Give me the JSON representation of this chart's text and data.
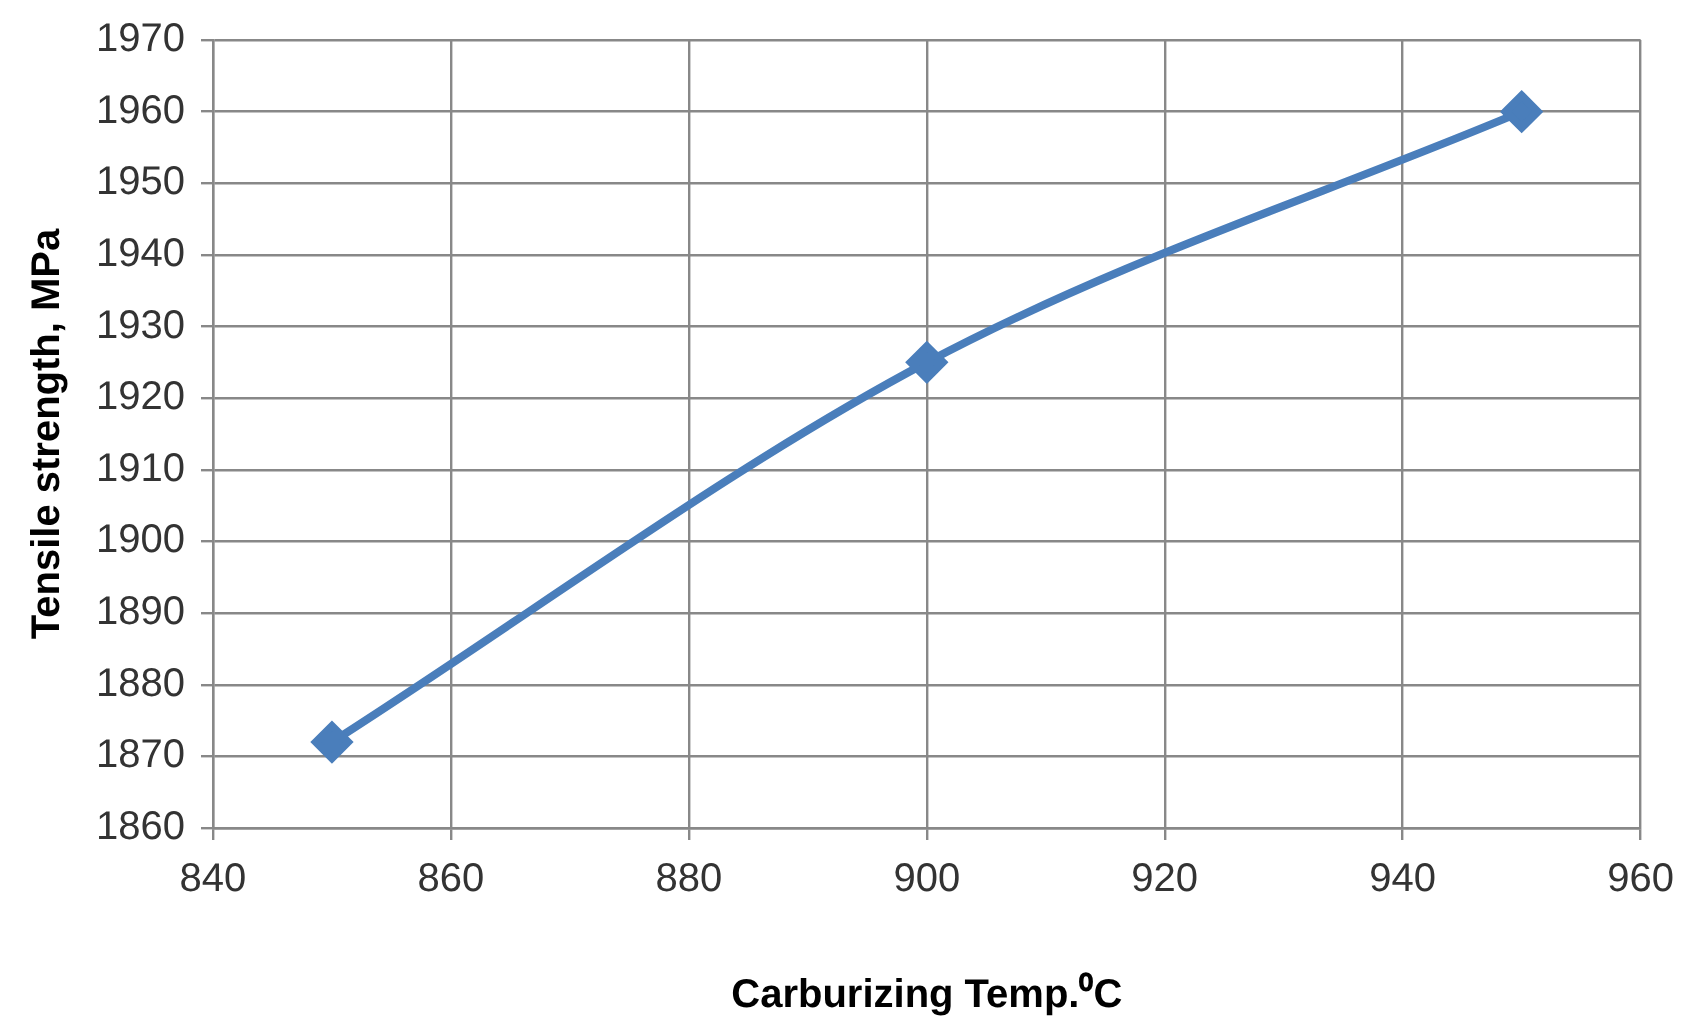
{
  "chart_data": {
    "type": "line",
    "xlabel": "Carburizing Temp.⁰C",
    "ylabel": "Tensile strength, MPa",
    "x": [
      850,
      900,
      950
    ],
    "series": [
      {
        "color": "#4a7ebb",
        "values": [
          1872,
          1925,
          1960
        ]
      }
    ],
    "xlim": [
      840,
      960
    ],
    "xticks": [
      840,
      860,
      880,
      900,
      920,
      940,
      960
    ],
    "ylim": [
      1860,
      1970
    ],
    "yticks": [
      1860,
      1870,
      1880,
      1890,
      1900,
      1910,
      1920,
      1930,
      1940,
      1950,
      1960,
      1970
    ],
    "grid": true,
    "legend": false,
    "marker": "diamond",
    "line_style": "solid"
  }
}
